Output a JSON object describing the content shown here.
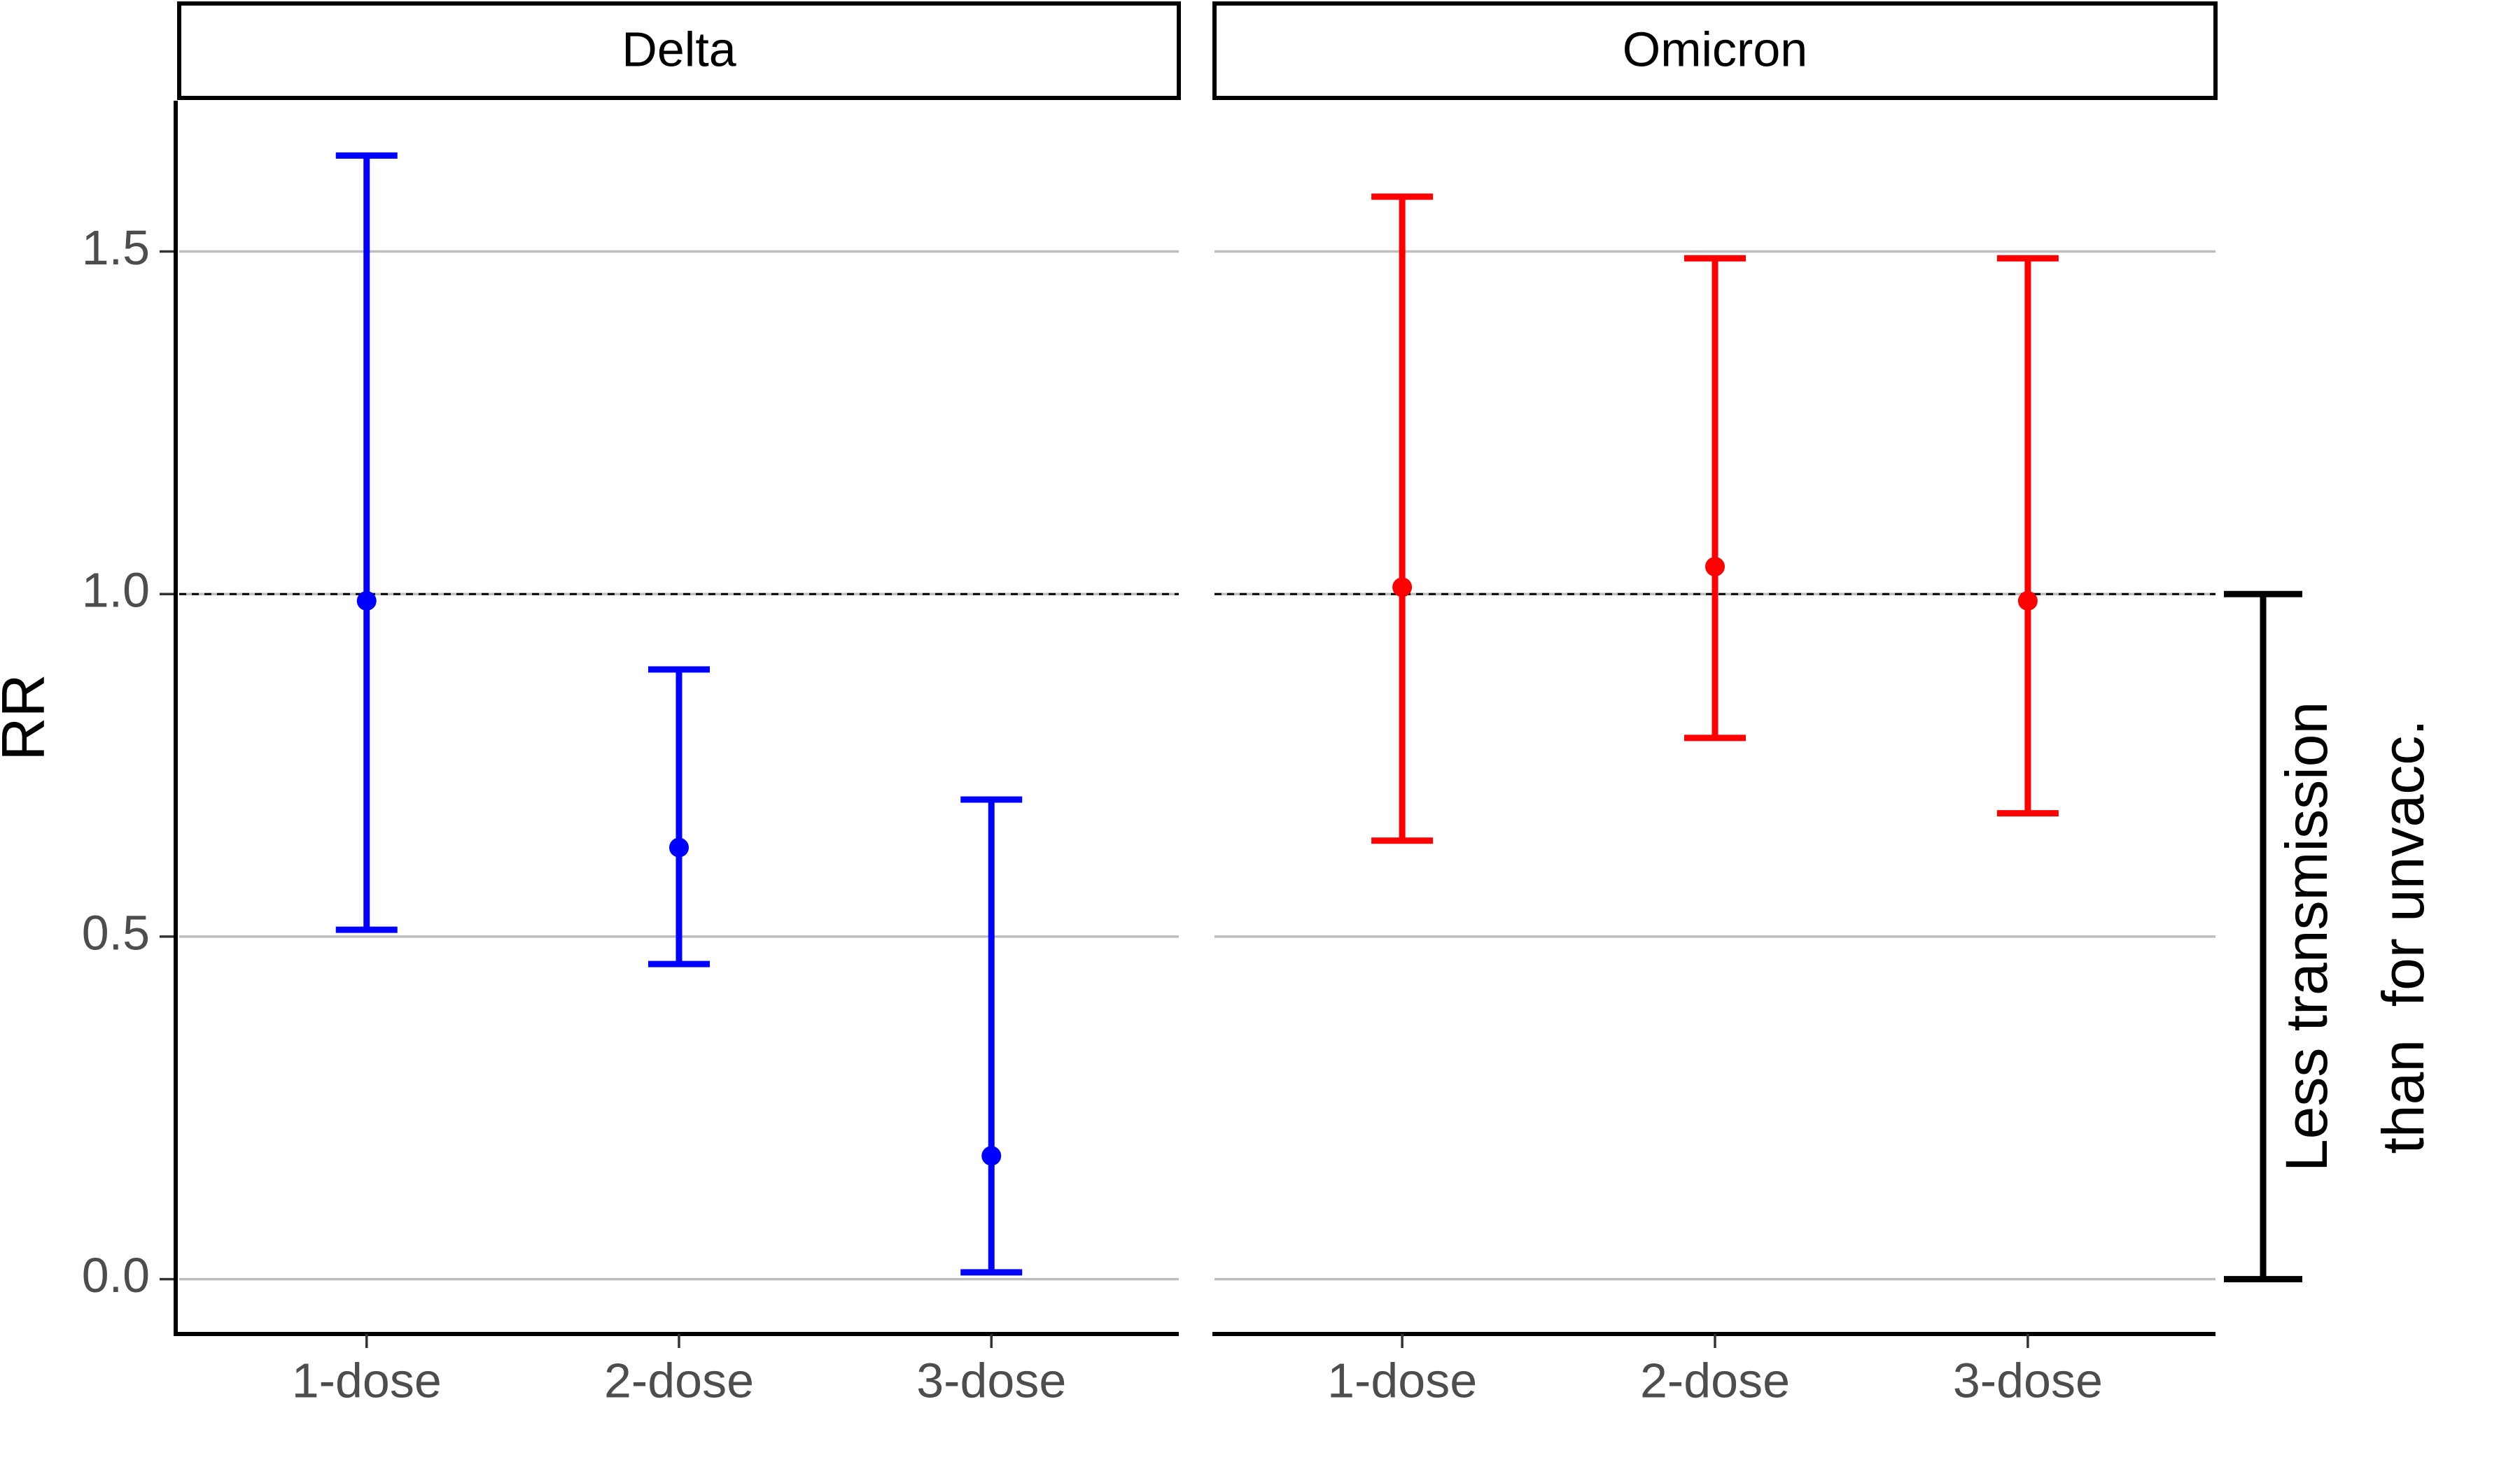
{
  "chart_data": [
    {
      "type": "errorbar",
      "title": "Delta",
      "y_label": "RR",
      "categories": [
        "1-dose",
        "2-dose",
        "3-dose"
      ],
      "values": [
        0.99,
        0.63,
        0.18
      ],
      "lower": [
        0.51,
        0.46,
        0.01
      ],
      "upper": [
        1.64,
        0.89,
        0.7
      ],
      "color": "#0000ff",
      "ylim": [
        -0.08,
        1.72
      ],
      "yticks": [
        {
          "value": 0,
          "label": "0.0"
        },
        {
          "value": 0.5,
          "label": "0.5"
        },
        {
          "value": 1,
          "label": "1.0"
        },
        {
          "value": 1.5,
          "label": "1.5"
        }
      ],
      "hline": 1,
      "grid": true
    },
    {
      "type": "errorbar",
      "title": "Omicron",
      "categories": [
        "1-dose",
        "2-dose",
        "3-dose"
      ],
      "values": [
        1.01,
        1.04,
        0.99
      ],
      "lower": [
        0.64,
        0.79,
        0.68
      ],
      "upper": [
        1.58,
        1.49,
        1.49
      ],
      "color": "#ff0000",
      "ylim": [
        -0.08,
        1.72
      ],
      "yticks": [
        {
          "value": 0,
          "label": "0.0"
        },
        {
          "value": 0.5,
          "label": "0.5"
        },
        {
          "value": 1,
          "label": "1.0"
        },
        {
          "value": 1.5,
          "label": "1.5"
        }
      ],
      "hline": 1,
      "grid": true,
      "annotation": {
        "lines": [
          "Less transmission",
          "than  for unvacc."
        ],
        "range": [
          0,
          1
        ]
      }
    }
  ]
}
